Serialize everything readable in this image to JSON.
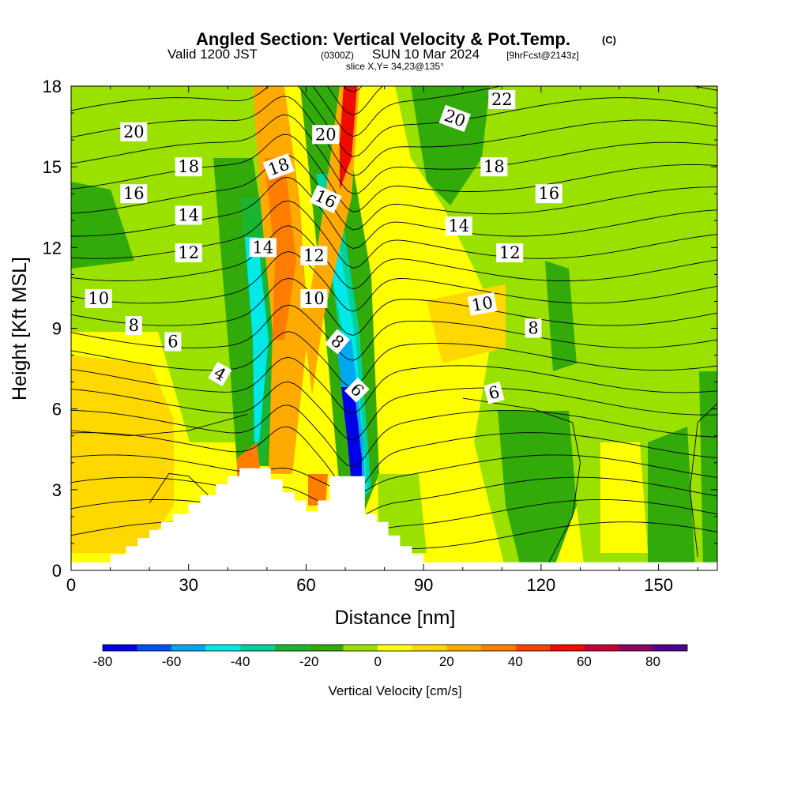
{
  "header": {
    "title": "Angled Section: Vertical Velocity & Pot.Temp.",
    "title_units": "(C)",
    "valid_prefix": "Valid 1200 JST",
    "valid_utc": "(0300Z)",
    "valid_date": "SUN 10 Mar 2024",
    "forecast_info": "[9hrFcst@2143z]",
    "slice": "slice X,Y= 34,23@135°"
  },
  "chart_data": {
    "type": "heatmap",
    "xlabel": "Distance [nm]",
    "ylabel": "Height [Kft MSL]",
    "xlim": [
      0,
      165
    ],
    "ylim": [
      0,
      18
    ],
    "xticks": [
      "0",
      "30",
      "60",
      "90",
      "120",
      "150"
    ],
    "yticks": [
      "0",
      "3",
      "6",
      "9",
      "12",
      "15",
      "18"
    ],
    "terrain": [
      [
        0,
        0.3
      ],
      [
        10,
        0.6
      ],
      [
        14,
        0.9
      ],
      [
        17,
        1.2
      ],
      [
        20,
        1.5
      ],
      [
        23,
        1.8
      ],
      [
        26,
        2.1
      ],
      [
        30,
        2.5
      ],
      [
        33,
        2.8
      ],
      [
        37,
        3.2
      ],
      [
        40,
        3.5
      ],
      [
        43,
        3.8
      ],
      [
        48,
        3.8
      ],
      [
        51,
        3.4
      ],
      [
        54,
        2.9
      ],
      [
        57,
        2.6
      ],
      [
        60,
        2.2
      ],
      [
        63,
        2.6
      ],
      [
        66,
        3.5
      ],
      [
        72,
        3.5
      ],
      [
        75,
        2.1
      ],
      [
        78,
        1.8
      ],
      [
        81,
        1.3
      ],
      [
        84,
        0.9
      ],
      [
        87,
        0.6
      ],
      [
        90,
        0.3
      ],
      [
        165,
        0.3
      ]
    ],
    "isentrope_labels": [
      {
        "x": 16,
        "y": 16.3,
        "text": "20",
        "angle": 0
      },
      {
        "x": 30,
        "y": 15.0,
        "text": "18",
        "angle": 0
      },
      {
        "x": 16,
        "y": 14.0,
        "text": "16",
        "angle": 0
      },
      {
        "x": 30,
        "y": 13.2,
        "text": "14",
        "angle": 0
      },
      {
        "x": 30,
        "y": 11.8,
        "text": "12",
        "angle": 0
      },
      {
        "x": 7,
        "y": 10.1,
        "text": "10",
        "angle": 0
      },
      {
        "x": 16,
        "y": 9.1,
        "text": "8",
        "angle": 0
      },
      {
        "x": 26,
        "y": 8.5,
        "text": "6",
        "angle": 0
      },
      {
        "x": 38,
        "y": 7.3,
        "text": "4",
        "angle": 30
      },
      {
        "x": 53,
        "y": 15.0,
        "text": "18",
        "angle": -20
      },
      {
        "x": 49,
        "y": 12.0,
        "text": "14",
        "angle": 0
      },
      {
        "x": 65,
        "y": 16.2,
        "text": "20",
        "angle": 0
      },
      {
        "x": 65,
        "y": 13.8,
        "text": "16",
        "angle": 25
      },
      {
        "x": 62,
        "y": 11.7,
        "text": "12",
        "angle": 0
      },
      {
        "x": 62,
        "y": 10.1,
        "text": "10",
        "angle": 0
      },
      {
        "x": 68,
        "y": 8.5,
        "text": "8",
        "angle": 40
      },
      {
        "x": 73,
        "y": 6.7,
        "text": "6",
        "angle": 45
      },
      {
        "x": 110,
        "y": 17.5,
        "text": "22",
        "angle": 0
      },
      {
        "x": 98,
        "y": 16.8,
        "text": "20",
        "angle": 20
      },
      {
        "x": 108,
        "y": 15.0,
        "text": "18",
        "angle": 0
      },
      {
        "x": 122,
        "y": 14.0,
        "text": "16",
        "angle": 0
      },
      {
        "x": 99,
        "y": 12.8,
        "text": "14",
        "angle": 0
      },
      {
        "x": 112,
        "y": 11.8,
        "text": "12",
        "angle": 0
      },
      {
        "x": 105,
        "y": 9.9,
        "text": "10",
        "angle": -10
      },
      {
        "x": 118,
        "y": 9.0,
        "text": "8",
        "angle": 0
      },
      {
        "x": 108,
        "y": 6.6,
        "text": "6",
        "angle": -15
      }
    ],
    "colorbar": {
      "title": "Vertical Velocity [cm/s]",
      "tick_labels": [
        "-80",
        "-60",
        "-40",
        "-20",
        "0",
        "20",
        "40",
        "60",
        "80"
      ],
      "levels": [
        -80,
        -70,
        -60,
        -50,
        -40,
        -30,
        -20,
        -10,
        0,
        10,
        20,
        30,
        40,
        50,
        60,
        70,
        80,
        90
      ],
      "colors": [
        "#0000e6",
        "#0050f0",
        "#00a8f0",
        "#00e8e8",
        "#00d29b",
        "#19b432",
        "#32aa0a",
        "#9be100",
        "#ffff00",
        "#ffd800",
        "#ffaa00",
        "#ff7d00",
        "#ff4100",
        "#f00a00",
        "#c80032",
        "#8c0064",
        "#50008c"
      ]
    }
  }
}
